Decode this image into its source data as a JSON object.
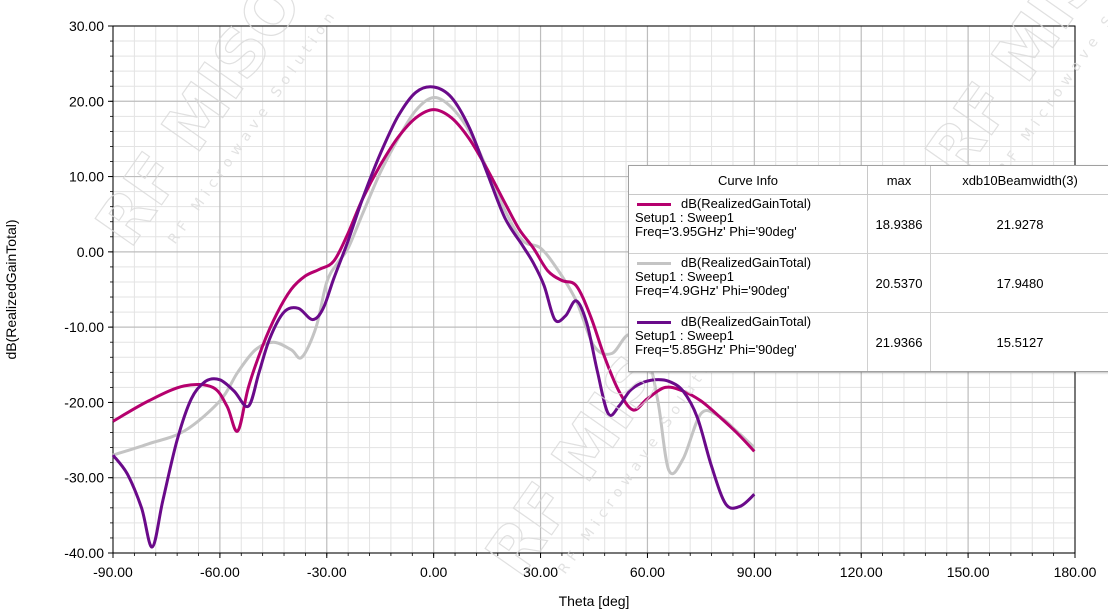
{
  "chart_data": {
    "type": "line",
    "xlabel": "Theta [deg]",
    "ylabel": "dB(RealizedGainTotal)",
    "xlim": [
      -90,
      180
    ],
    "ylim": [
      -40,
      30
    ],
    "x_ticks": [
      "-90.00",
      "-60.00",
      "-30.00",
      "0.00",
      "30.00",
      "60.00",
      "90.00",
      "120.00",
      "150.00",
      "180.00"
    ],
    "y_ticks": [
      "30.00",
      "20.00",
      "10.00",
      "0.00",
      "-10.00",
      "-20.00",
      "-30.00",
      "-40.00"
    ],
    "grid": true,
    "legend_placement": "right",
    "series": [
      {
        "name": "dB(RealizedGainTotal)",
        "color": "#B5006E",
        "x": [
          -90,
          -80,
          -70,
          -62,
          -58,
          -55,
          -52,
          -48,
          -44,
          -40,
          -36,
          -32,
          -28,
          -24,
          -20,
          -15,
          -10,
          -5,
          0,
          5,
          10,
          15,
          20,
          24,
          28,
          32,
          36,
          40,
          44,
          48,
          52,
          56,
          60,
          65,
          70,
          75,
          80,
          85,
          90
        ],
        "y": [
          -22.5,
          -19.8,
          -17.8,
          -18.0,
          -20.5,
          -23.8,
          -18.0,
          -12.5,
          -8.2,
          -5.0,
          -3.2,
          -2.3,
          -1.2,
          2.5,
          7.0,
          11.5,
          15.2,
          17.8,
          18.9,
          17.8,
          15.0,
          11.0,
          6.5,
          3.0,
          0.5,
          -2.5,
          -3.8,
          -4.5,
          -8.5,
          -14.0,
          -18.5,
          -21.0,
          -19.5,
          -18.0,
          -18.5,
          -19.8,
          -21.8,
          -24.0,
          -26.5
        ],
        "summary": {
          "curve_info": [
            "Setup1 : Sweep1",
            "Freq='3.95GHz' Phi='90deg'"
          ],
          "max": "18.9386",
          "xdb10Beamwidth(3)": "21.9278"
        }
      },
      {
        "name": "dB(RealizedGainTotal)",
        "color": "#C4C4C4",
        "x": [
          -90,
          -80,
          -70,
          -60,
          -55,
          -50,
          -45,
          -40,
          -37,
          -33,
          -30,
          -27,
          -24,
          -20,
          -15,
          -10,
          -5,
          0,
          5,
          10,
          15,
          20,
          25,
          30,
          35,
          40,
          45,
          50,
          55,
          60,
          63,
          66,
          70,
          75,
          80,
          85,
          90
        ],
        "y": [
          -27.0,
          -25.5,
          -23.8,
          -19.8,
          -16.0,
          -13.0,
          -12.0,
          -13.0,
          -14.0,
          -10.0,
          -4.0,
          -1.5,
          0.5,
          5.0,
          10.5,
          15.0,
          18.8,
          20.5,
          19.2,
          16.0,
          11.0,
          5.5,
          1.5,
          0.5,
          -2.5,
          -6.5,
          -12.5,
          -13.5,
          -11.0,
          -14.0,
          -20.0,
          -29.0,
          -27.5,
          -21.5,
          -21.8,
          -23.8,
          -26.0
        ],
        "summary": {
          "curve_info": [
            "Setup1 : Sweep1",
            "Freq='4.9GHz' Phi='90deg'"
          ],
          "max": "20.5370",
          "xdb10Beamwidth(3)": "17.9480"
        }
      },
      {
        "name": "dB(RealizedGainTotal)",
        "color": "#6A0A8A",
        "x": [
          -90,
          -86,
          -82,
          -79,
          -76,
          -72,
          -68,
          -64,
          -60,
          -56,
          -52,
          -49,
          -46,
          -42,
          -38,
          -34,
          -31,
          -28,
          -24,
          -20,
          -15,
          -10,
          -5,
          0,
          5,
          10,
          15,
          20,
          25,
          28,
          31,
          34,
          37,
          40,
          43,
          46,
          49,
          52,
          55,
          58,
          62,
          66,
          70,
          74,
          78,
          82,
          86,
          90
        ],
        "y": [
          -27.0,
          -29.5,
          -34.0,
          -39.2,
          -33.0,
          -25.0,
          -19.5,
          -17.2,
          -17.0,
          -18.5,
          -20.5,
          -16.0,
          -11.5,
          -8.0,
          -7.5,
          -9.0,
          -7.5,
          -3.5,
          1.5,
          7.0,
          13.0,
          18.0,
          21.2,
          21.9,
          20.5,
          16.5,
          10.5,
          4.5,
          0.8,
          -1.5,
          -4.5,
          -9.0,
          -8.5,
          -6.5,
          -9.5,
          -16.0,
          -21.5,
          -20.5,
          -18.5,
          -17.5,
          -17.0,
          -17.2,
          -18.5,
          -22.0,
          -28.5,
          -33.5,
          -33.8,
          -32.2
        ],
        "summary": {
          "curve_info": [
            "Setup1 : Sweep1",
            "Freq='5.85GHz' Phi='90deg'"
          ],
          "max": "21.9366",
          "xdb10Beamwidth(3)": "15.5127"
        }
      }
    ],
    "legend_table": {
      "headers": [
        "Curve Info",
        "max",
        "xdb10Beamwidth(3)"
      ]
    }
  },
  "watermark": {
    "text_main": "RF MISO",
    "text_sub": "RF Microwave Solution"
  }
}
